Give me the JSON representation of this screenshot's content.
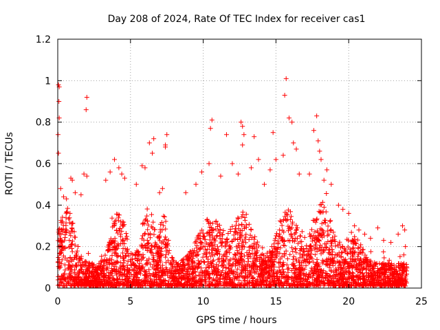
{
  "chart_data": {
    "type": "scatter",
    "title": "Day 208 of 2024, Rate Of TEC Index for receiver cas1",
    "xlabel": "GPS time / hours",
    "ylabel": "ROTI / TECUs",
    "xlim": [
      0,
      25
    ],
    "ylim": [
      0,
      1.2
    ],
    "x_ticks": [
      0,
      5,
      10,
      15,
      20,
      25
    ],
    "x_tick_labels": [
      "0",
      "5",
      "10",
      "15",
      "20",
      "25"
    ],
    "y_ticks": [
      0,
      0.2,
      0.4,
      0.6,
      0.8,
      1,
      1.2
    ],
    "y_tick_labels": [
      "0",
      "0.2",
      "0.4",
      "0.6",
      "0.8",
      "1",
      "1.2"
    ],
    "grid": true,
    "marker": "+",
    "color": "#ff0000",
    "series": [
      {
        "name": "ROTI",
        "points": [
          [
            0.05,
            0.98
          ],
          [
            0.1,
            0.97
          ],
          [
            0.08,
            0.9
          ],
          [
            0.1,
            0.82
          ],
          [
            0.02,
            0.74
          ],
          [
            0.05,
            0.65
          ],
          [
            0.2,
            0.48
          ],
          [
            0.4,
            0.44
          ],
          [
            0.6,
            0.43
          ],
          [
            0.9,
            0.53
          ],
          [
            1.0,
            0.52
          ],
          [
            1.2,
            0.46
          ],
          [
            2.0,
            0.92
          ],
          [
            1.95,
            0.86
          ],
          [
            1.8,
            0.55
          ],
          [
            2.0,
            0.54
          ],
          [
            1.6,
            0.45
          ],
          [
            3.3,
            0.52
          ],
          [
            3.6,
            0.56
          ],
          [
            3.9,
            0.62
          ],
          [
            4.2,
            0.58
          ],
          [
            4.4,
            0.55
          ],
          [
            4.6,
            0.53
          ],
          [
            5.4,
            0.5
          ],
          [
            5.8,
            0.59
          ],
          [
            6.0,
            0.58
          ],
          [
            6.3,
            0.7
          ],
          [
            6.5,
            0.65
          ],
          [
            6.6,
            0.72
          ],
          [
            7.0,
            0.46
          ],
          [
            7.2,
            0.48
          ],
          [
            7.4,
            0.69
          ],
          [
            7.5,
            0.74
          ],
          [
            7.4,
            0.68
          ],
          [
            8.8,
            0.46
          ],
          [
            9.5,
            0.5
          ],
          [
            9.9,
            0.56
          ],
          [
            10.4,
            0.6
          ],
          [
            10.5,
            0.77
          ],
          [
            10.6,
            0.81
          ],
          [
            11.2,
            0.54
          ],
          [
            11.6,
            0.74
          ],
          [
            12.0,
            0.6
          ],
          [
            12.4,
            0.55
          ],
          [
            12.6,
            0.8
          ],
          [
            12.7,
            0.78
          ],
          [
            12.8,
            0.74
          ],
          [
            12.7,
            0.69
          ],
          [
            13.3,
            0.58
          ],
          [
            13.5,
            0.73
          ],
          [
            13.8,
            0.62
          ],
          [
            14.2,
            0.5
          ],
          [
            14.6,
            0.57
          ],
          [
            14.8,
            0.75
          ],
          [
            15.0,
            0.62
          ],
          [
            15.5,
            0.64
          ],
          [
            15.7,
            1.01
          ],
          [
            15.6,
            0.93
          ],
          [
            15.9,
            0.82
          ],
          [
            16.1,
            0.8
          ],
          [
            16.2,
            0.7
          ],
          [
            16.4,
            0.67
          ],
          [
            16.6,
            0.55
          ],
          [
            17.3,
            0.55
          ],
          [
            17.6,
            0.76
          ],
          [
            17.8,
            0.83
          ],
          [
            17.9,
            0.71
          ],
          [
            18.0,
            0.66
          ],
          [
            18.1,
            0.62
          ],
          [
            18.3,
            0.52
          ],
          [
            18.5,
            0.57
          ],
          [
            18.8,
            0.5
          ],
          [
            19.3,
            0.4
          ],
          [
            19.6,
            0.38
          ],
          [
            20.0,
            0.36
          ],
          [
            20.4,
            0.3
          ],
          [
            20.7,
            0.28
          ],
          [
            21.1,
            0.26
          ],
          [
            21.5,
            0.24
          ],
          [
            22.0,
            0.29
          ],
          [
            22.4,
            0.23
          ],
          [
            22.9,
            0.22
          ],
          [
            23.4,
            0.26
          ],
          [
            23.7,
            0.3
          ],
          [
            23.85,
            0.28
          ],
          [
            23.9,
            0.2
          ]
        ]
      }
    ]
  }
}
